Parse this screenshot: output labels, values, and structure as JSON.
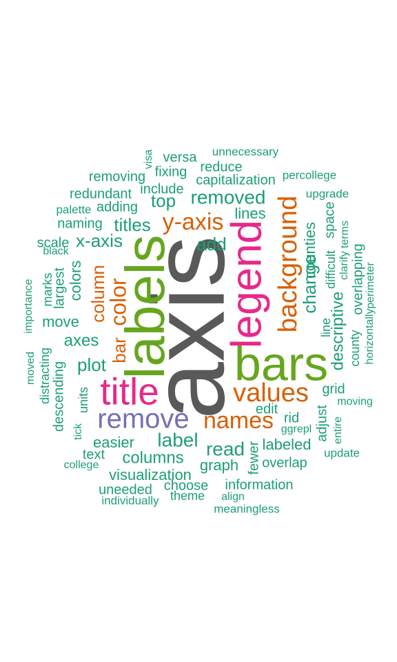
{
  "palette": {
    "gray": "#595959",
    "teal": "#1b9e77",
    "orange": "#d95f02",
    "purple": "#7570b3",
    "magenta": "#e7298a",
    "green": "#66a61e"
  },
  "words": [
    {
      "text": "axis",
      "color": "gray"
    },
    {
      "text": "labels",
      "color": "green"
    },
    {
      "text": "bars",
      "color": "green"
    },
    {
      "text": "legend",
      "color": "magenta"
    },
    {
      "text": "title",
      "color": "magenta"
    },
    {
      "text": "remove",
      "color": "purple"
    },
    {
      "text": "background",
      "color": "orange"
    },
    {
      "text": "values",
      "color": "orange"
    },
    {
      "text": "names",
      "color": "orange"
    },
    {
      "text": "y-axis",
      "color": "orange"
    },
    {
      "text": "color",
      "color": "orange"
    },
    {
      "text": "column",
      "color": "orange"
    },
    {
      "text": "bar",
      "color": "orange"
    },
    {
      "text": "removed",
      "color": "teal"
    },
    {
      "text": "x-axis",
      "color": "teal"
    },
    {
      "text": "titles",
      "color": "teal"
    },
    {
      "text": "top",
      "color": "teal"
    },
    {
      "text": "add",
      "color": "teal"
    },
    {
      "text": "lines",
      "color": "teal"
    },
    {
      "text": "colors",
      "color": "teal"
    },
    {
      "text": "move",
      "color": "teal"
    },
    {
      "text": "axes",
      "color": "teal"
    },
    {
      "text": "plot",
      "color": "teal"
    },
    {
      "text": "label",
      "color": "teal"
    },
    {
      "text": "read",
      "color": "teal"
    },
    {
      "text": "columns",
      "color": "teal"
    },
    {
      "text": "change",
      "color": "teal"
    },
    {
      "text": "descriptive",
      "color": "teal"
    },
    {
      "text": "counties",
      "color": "teal"
    },
    {
      "text": "labeled",
      "color": "teal"
    },
    {
      "text": "visualization",
      "color": "teal"
    },
    {
      "text": "graph",
      "color": "teal"
    },
    {
      "text": "easier",
      "color": "teal"
    },
    {
      "text": "overlap",
      "color": "teal"
    },
    {
      "text": "information",
      "color": "teal"
    },
    {
      "text": "capitalization",
      "color": "teal"
    },
    {
      "text": "versa",
      "color": "teal"
    },
    {
      "text": "unnecessary",
      "color": "teal"
    },
    {
      "text": "visa",
      "color": "teal"
    },
    {
      "text": "fixing",
      "color": "teal"
    },
    {
      "text": "reduce",
      "color": "teal"
    },
    {
      "text": "removing",
      "color": "teal"
    },
    {
      "text": "percollege",
      "color": "teal"
    },
    {
      "text": "redundant",
      "color": "teal"
    },
    {
      "text": "include",
      "color": "teal"
    },
    {
      "text": "upgrade",
      "color": "teal"
    },
    {
      "text": "palette",
      "color": "teal"
    },
    {
      "text": "adding",
      "color": "teal"
    },
    {
      "text": "naming",
      "color": "teal"
    },
    {
      "text": "scale",
      "color": "teal"
    },
    {
      "text": "black",
      "color": "teal"
    },
    {
      "text": "space",
      "color": "teal"
    },
    {
      "text": "difficult",
      "color": "teal"
    },
    {
      "text": "terms",
      "color": "teal"
    },
    {
      "text": "clarify",
      "color": "teal"
    },
    {
      "text": "overlapping",
      "color": "teal"
    },
    {
      "text": "perimeter",
      "color": "teal"
    },
    {
      "text": "line",
      "color": "teal"
    },
    {
      "text": "county",
      "color": "teal"
    },
    {
      "text": "horizontally",
      "color": "teal"
    },
    {
      "text": "largest",
      "color": "teal"
    },
    {
      "text": "marks",
      "color": "teal"
    },
    {
      "text": "importance",
      "color": "teal"
    },
    {
      "text": "distracting",
      "color": "teal"
    },
    {
      "text": "moved",
      "color": "teal"
    },
    {
      "text": "descending",
      "color": "teal"
    },
    {
      "text": "units",
      "color": "teal"
    },
    {
      "text": "tick",
      "color": "teal"
    },
    {
      "text": "grid",
      "color": "teal"
    },
    {
      "text": "moving",
      "color": "teal"
    },
    {
      "text": "edit",
      "color": "teal"
    },
    {
      "text": "rid",
      "color": "teal"
    },
    {
      "text": "adjust",
      "color": "teal"
    },
    {
      "text": "ggrepl",
      "color": "teal"
    },
    {
      "text": "entire",
      "color": "teal"
    },
    {
      "text": "fewer",
      "color": "teal"
    },
    {
      "text": "update",
      "color": "teal"
    },
    {
      "text": "text",
      "color": "teal"
    },
    {
      "text": "college",
      "color": "teal"
    },
    {
      "text": "choose",
      "color": "teal"
    },
    {
      "text": "uneeded",
      "color": "teal"
    },
    {
      "text": "theme",
      "color": "teal"
    },
    {
      "text": "individually",
      "color": "teal"
    },
    {
      "text": "align",
      "color": "teal"
    },
    {
      "text": "meaningless",
      "color": "teal"
    }
  ]
}
